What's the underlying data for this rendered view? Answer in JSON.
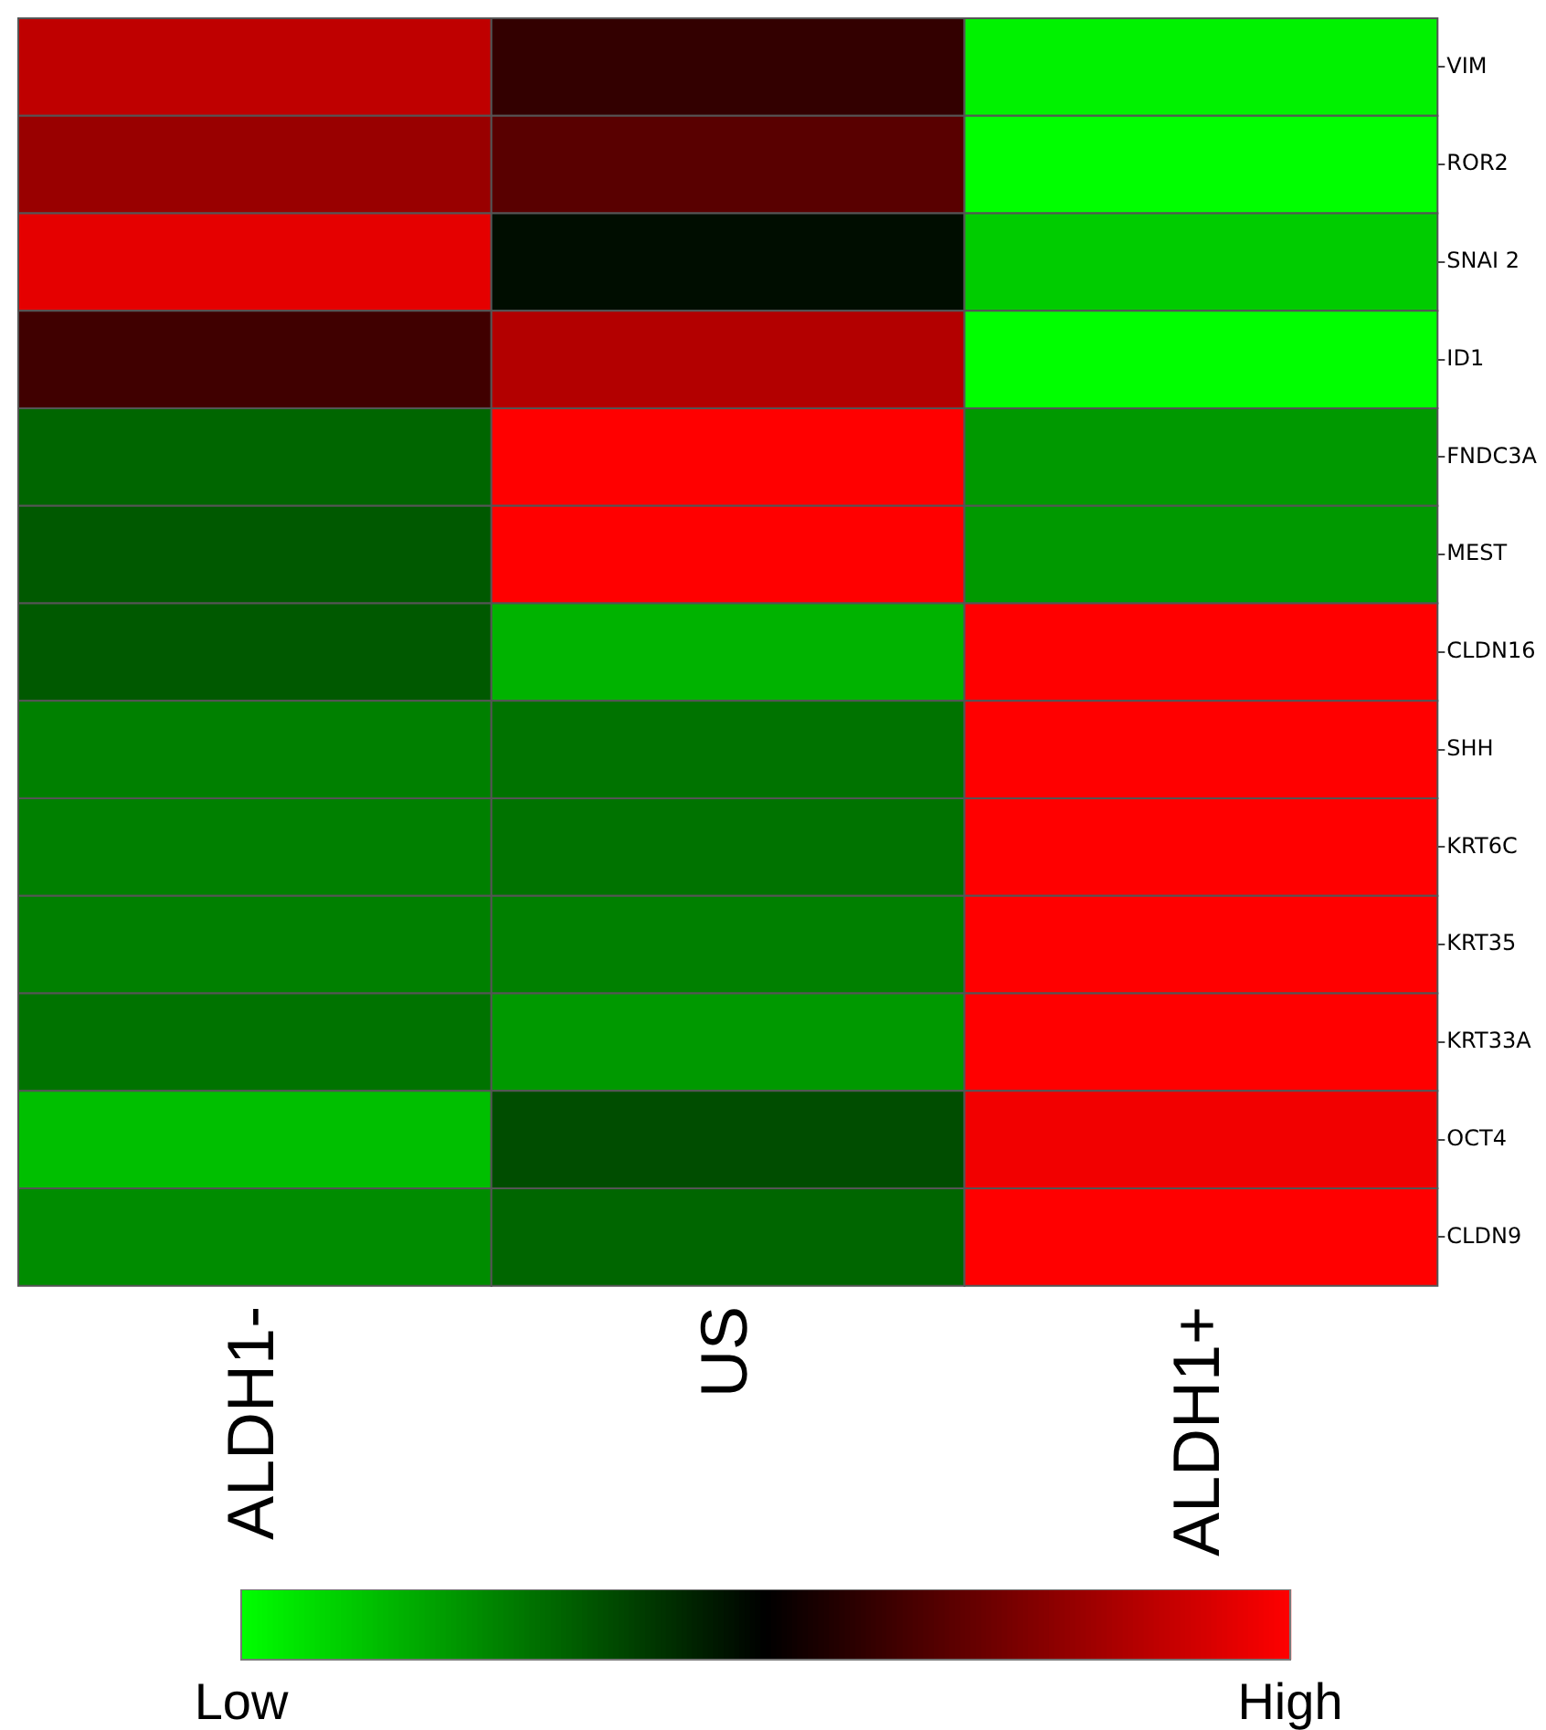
{
  "chart_data": {
    "type": "heatmap",
    "categories": [
      "ALDH1-",
      "US",
      "ALDH1+"
    ],
    "y_categories": [
      "VIM",
      "ROR2",
      "SNAI 2",
      "ID1",
      "FNDC3A",
      "MEST",
      "CLDN16",
      "SHH",
      "KRT6C",
      "KRT35",
      "KRT33A",
      "OCT4",
      "CLDN9"
    ],
    "cells": [
      [
        0.75,
        0.2,
        -0.95
      ],
      [
        0.6,
        0.35,
        -1
      ],
      [
        0.9,
        -0.05,
        -0.8
      ],
      [
        0.25,
        0.7,
        -1
      ],
      [
        -0.4,
        1,
        -0.6
      ],
      [
        -0.35,
        1,
        -0.6
      ],
      [
        -0.35,
        -0.7,
        1
      ],
      [
        -0.5,
        -0.45,
        1
      ],
      [
        -0.5,
        -0.45,
        1
      ],
      [
        -0.5,
        -0.5,
        1
      ],
      [
        -0.45,
        -0.6,
        1
      ],
      [
        -0.75,
        -0.3,
        0.95
      ],
      [
        -0.55,
        -0.4,
        1
      ]
    ],
    "clim": [
      -1,
      1
    ],
    "cticks": [
      {
        "value": -1,
        "label": "Low"
      },
      {
        "value": 1,
        "label": "High"
      }
    ]
  }
}
